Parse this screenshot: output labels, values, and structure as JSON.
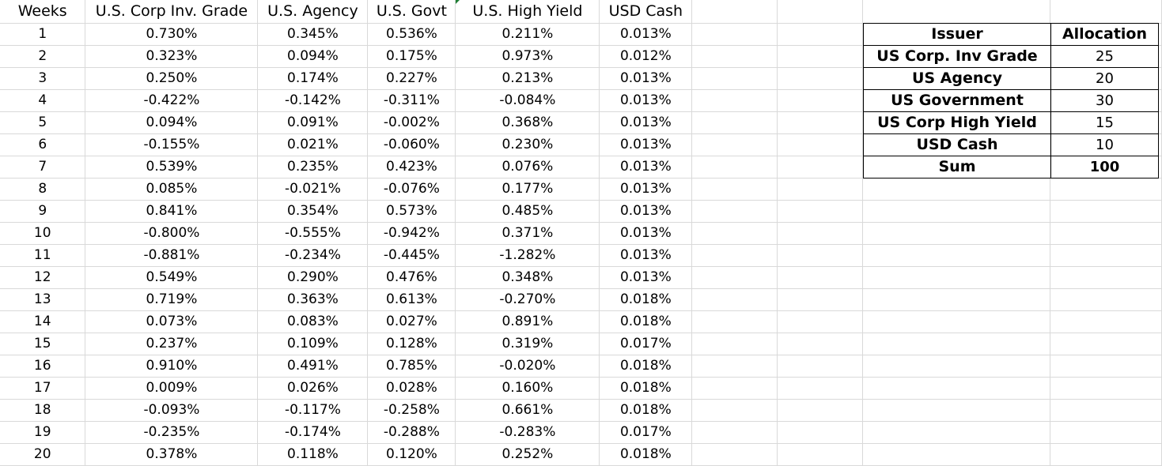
{
  "sheet": {
    "headers": [
      "Weeks",
      "U.S. Corp Inv. Grade",
      "U.S. Agency",
      "U.S. Govt",
      "U.S. High Yield",
      "USD Cash"
    ],
    "rows": [
      [
        "1",
        "0.730%",
        "0.345%",
        "0.536%",
        "0.211%",
        "0.013%"
      ],
      [
        "2",
        "0.323%",
        "0.094%",
        "0.175%",
        "0.973%",
        "0.012%"
      ],
      [
        "3",
        "0.250%",
        "0.174%",
        "0.227%",
        "0.213%",
        "0.013%"
      ],
      [
        "4",
        "-0.422%",
        "-0.142%",
        "-0.311%",
        "-0.084%",
        "0.013%"
      ],
      [
        "5",
        "0.094%",
        "0.091%",
        "-0.002%",
        "0.368%",
        "0.013%"
      ],
      [
        "6",
        "-0.155%",
        "0.021%",
        "-0.060%",
        "0.230%",
        "0.013%"
      ],
      [
        "7",
        "0.539%",
        "0.235%",
        "0.423%",
        "0.076%",
        "0.013%"
      ],
      [
        "8",
        "0.085%",
        "-0.021%",
        "-0.076%",
        "0.177%",
        "0.013%"
      ],
      [
        "9",
        "0.841%",
        "0.354%",
        "0.573%",
        "0.485%",
        "0.013%"
      ],
      [
        "10",
        "-0.800%",
        "-0.555%",
        "-0.942%",
        "0.371%",
        "0.013%"
      ],
      [
        "11",
        "-0.881%",
        "-0.234%",
        "-0.445%",
        "-1.282%",
        "0.013%"
      ],
      [
        "12",
        "0.549%",
        "0.290%",
        "0.476%",
        "0.348%",
        "0.013%"
      ],
      [
        "13",
        "0.719%",
        "0.363%",
        "0.613%",
        "-0.270%",
        "0.018%"
      ],
      [
        "14",
        "0.073%",
        "0.083%",
        "0.027%",
        "0.891%",
        "0.018%"
      ],
      [
        "15",
        "0.237%",
        "0.109%",
        "0.128%",
        "0.319%",
        "0.017%"
      ],
      [
        "16",
        "0.910%",
        "0.491%",
        "0.785%",
        "-0.020%",
        "0.018%"
      ],
      [
        "17",
        "0.009%",
        "0.026%",
        "0.028%",
        "0.160%",
        "0.018%"
      ],
      [
        "18",
        "-0.093%",
        "-0.117%",
        "-0.258%",
        "0.661%",
        "0.018%"
      ],
      [
        "19",
        "-0.235%",
        "-0.174%",
        "-0.288%",
        "-0.283%",
        "0.017%"
      ],
      [
        "20",
        "0.378%",
        "0.118%",
        "0.120%",
        "0.252%",
        "0.018%"
      ]
    ]
  },
  "allocation": {
    "headers": [
      "Issuer",
      "Allocation"
    ],
    "rows": [
      [
        "US Corp. Inv Grade",
        "25"
      ],
      [
        "US Agency",
        "20"
      ],
      [
        "US Government",
        "30"
      ],
      [
        "US Corp High Yield",
        "15"
      ],
      [
        "USD Cash",
        "10"
      ]
    ],
    "sum_label": "Sum",
    "sum_value": "100"
  },
  "colors": {
    "gridline": "#d9d9d9",
    "table_border": "#000000",
    "marker": "#1e7e34"
  }
}
